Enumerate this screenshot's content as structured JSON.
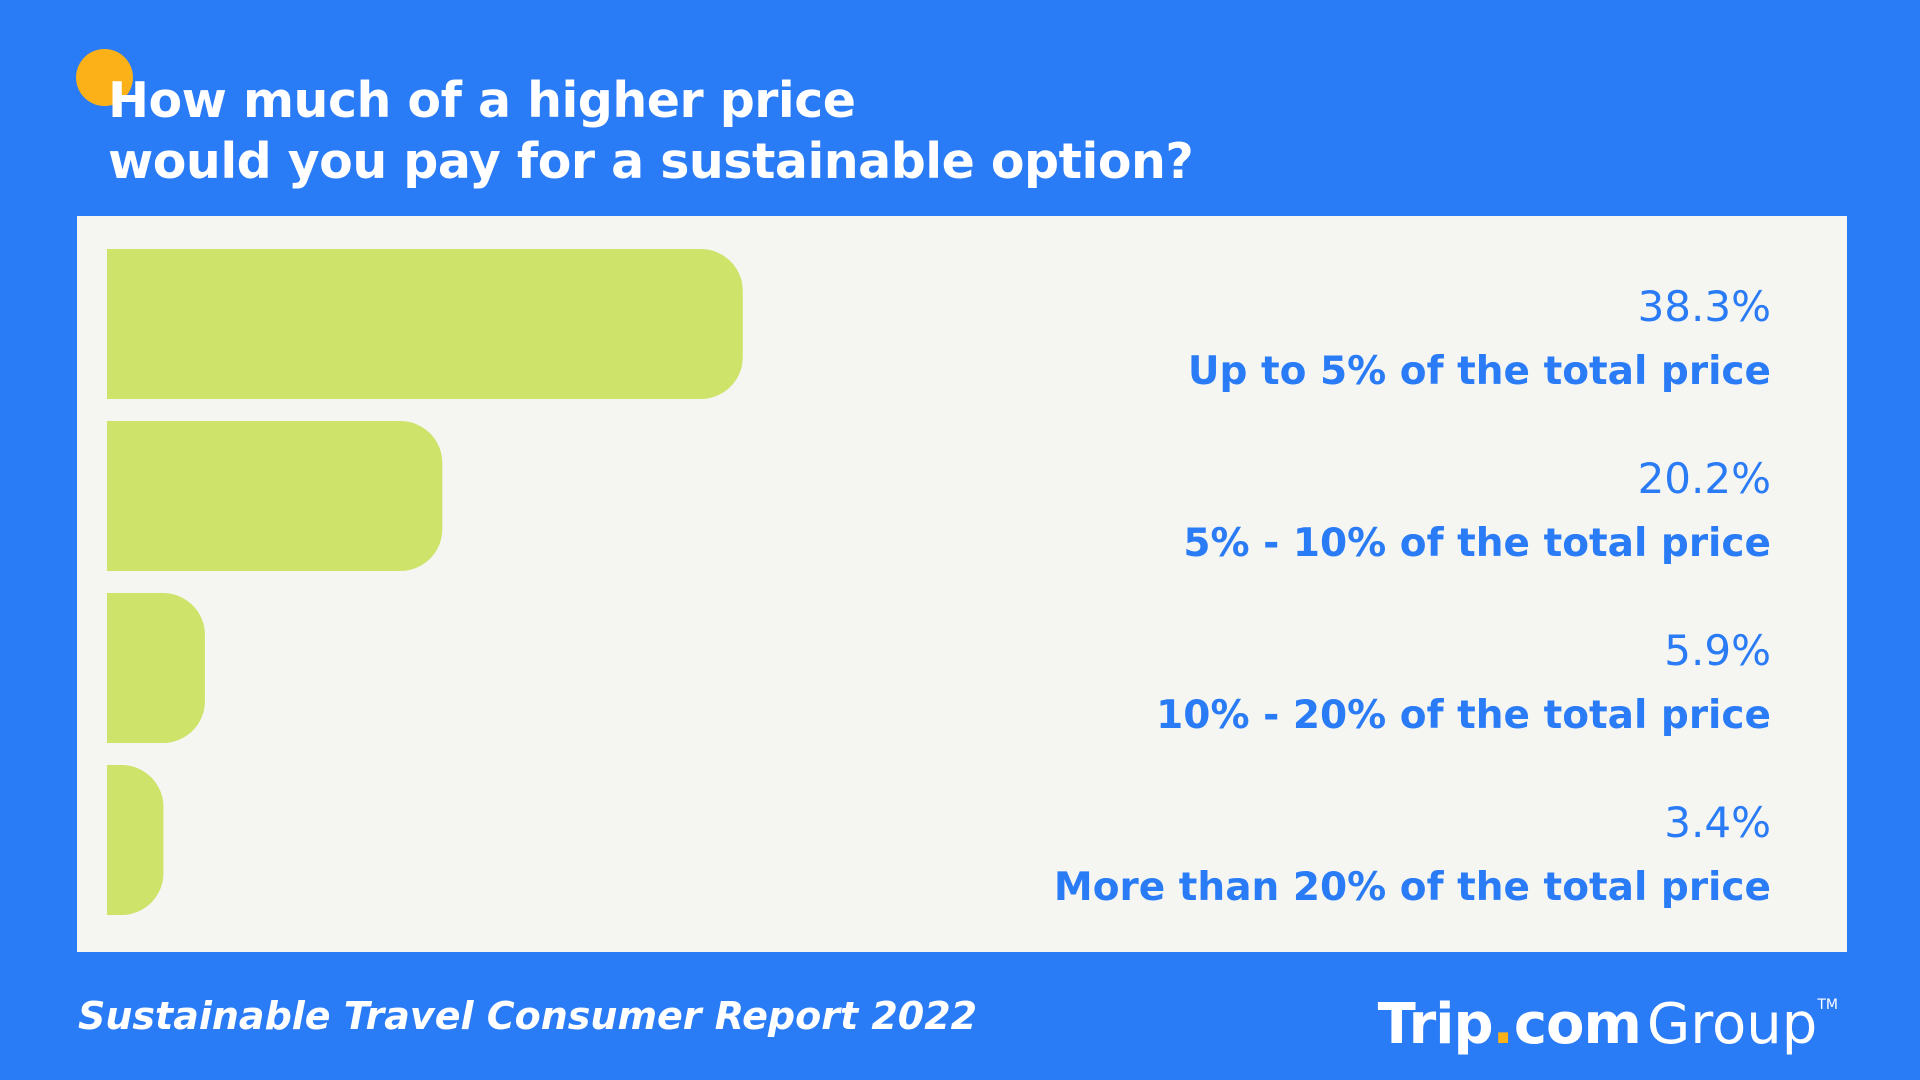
{
  "header": {
    "title_line1": "How much of a higher price",
    "title_line2": "would you pay for a sustainable option?"
  },
  "footer": {
    "report_title": "Sustainable Travel Consumer Report 2022",
    "logo_trip": "Trip",
    "logo_dot": ".",
    "logo_com": "com",
    "logo_group": "Group",
    "logo_tm": "TM"
  },
  "colors": {
    "background": "#2a7bf6",
    "panel": "#f5f5f1",
    "bar": "#cde36a",
    "text_accent": "#2a7bf6",
    "dot": "#fbb117"
  },
  "chart_data": {
    "type": "bar",
    "orientation": "horizontal",
    "categories": [
      "Up to 5% of the total price",
      "5% - 10% of the total price",
      "10% - 20% of the total price",
      "More than 20% of the total price"
    ],
    "values": [
      38.3,
      20.2,
      5.9,
      3.4
    ],
    "value_labels": [
      "38.3%",
      "20.2%",
      "5.9%",
      "3.4%"
    ],
    "unit": "%",
    "xlim": [
      0,
      100
    ],
    "grid": false,
    "legend": "none"
  }
}
